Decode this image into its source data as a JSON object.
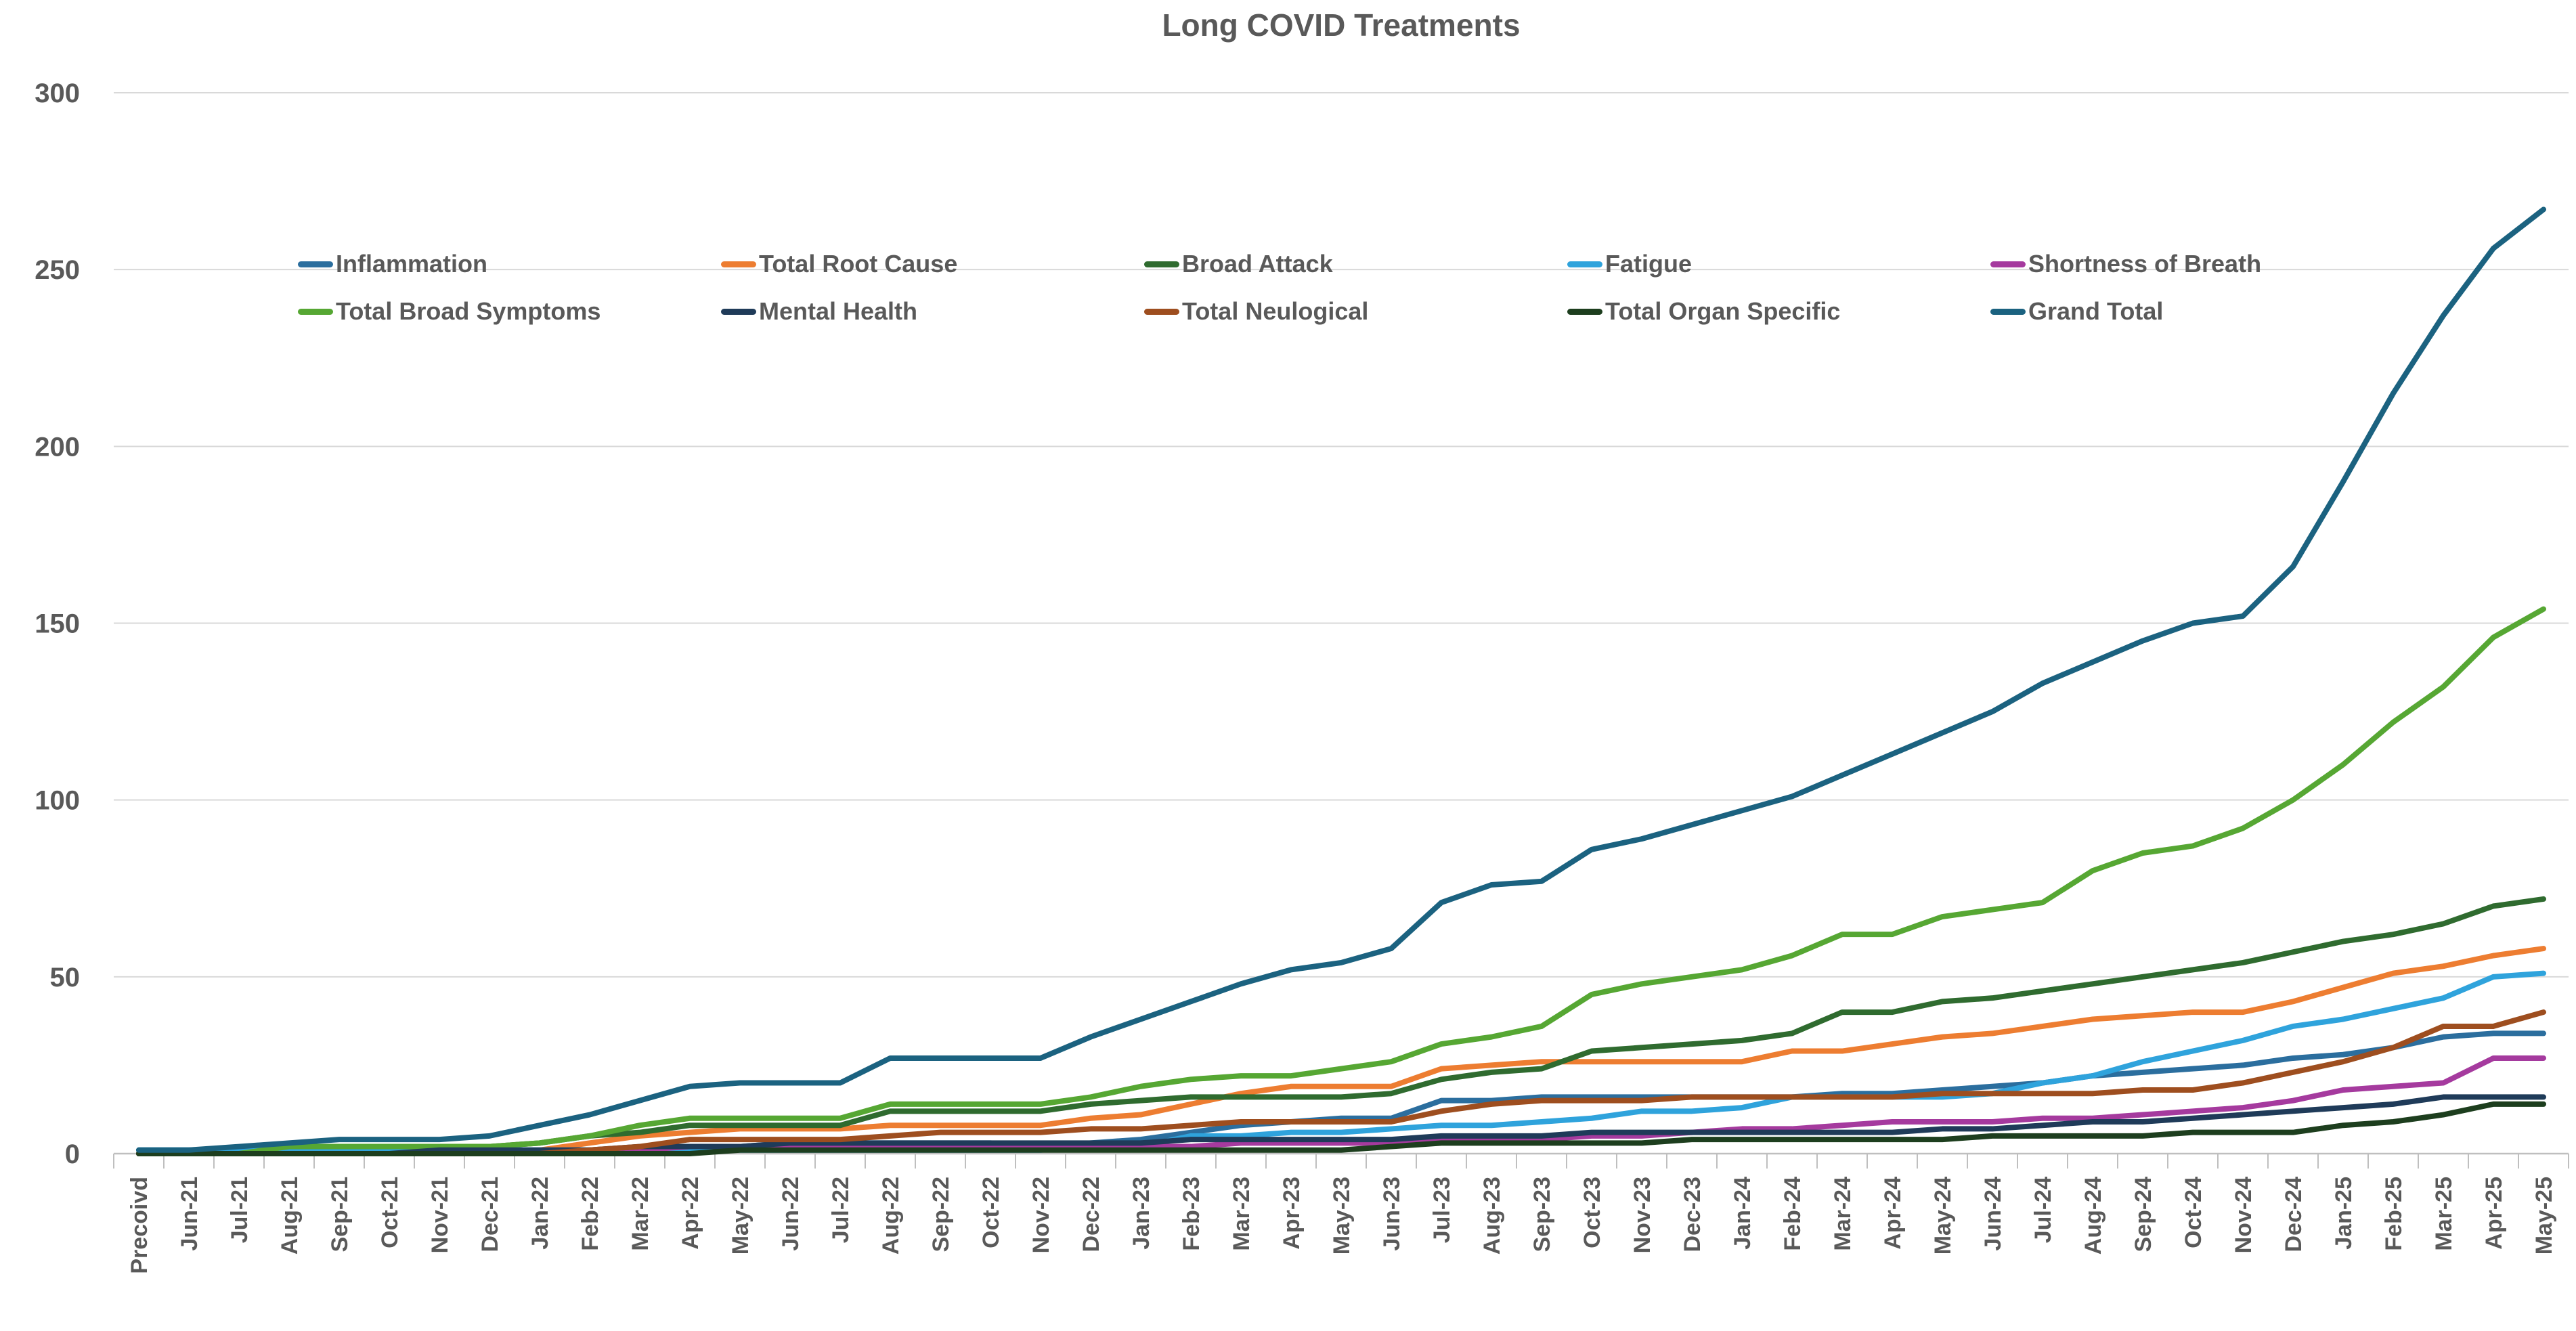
{
  "page": {
    "background": "#ffffff"
  },
  "chart_data": {
    "type": "line",
    "title": "Long COVID Treatments",
    "title_color": "#595959",
    "label_color": "#595959",
    "grid_color": "#D9D9D9",
    "axis_color": "#BFBFBF",
    "grid": true,
    "legend_position": "inside-top-left-two-rows",
    "ylim": [
      0,
      300
    ],
    "yticks": [
      0,
      50,
      100,
      150,
      200,
      250,
      300
    ],
    "xlabel": "",
    "ylabel": "",
    "categories": [
      "Precoivd",
      "Jun-21",
      "Jul-21",
      "Aug-21",
      "Sep-21",
      "Oct-21",
      "Nov-21",
      "Dec-21",
      "Jan-22",
      "Feb-22",
      "Mar-22",
      "Apr-22",
      "May-22",
      "Jun-22",
      "Jul-22",
      "Aug-22",
      "Sep-22",
      "Oct-22",
      "Nov-22",
      "Dec-22",
      "Jan-23",
      "Feb-23",
      "Mar-23",
      "Apr-23",
      "May-23",
      "Jun-23",
      "Jul-23",
      "Aug-23",
      "Sep-23",
      "Oct-23",
      "Nov-23",
      "Dec-23",
      "Jan-24",
      "Feb-24",
      "Mar-24",
      "Apr-24",
      "May-24",
      "Jun-24",
      "Jul-24",
      "Aug-24",
      "Sep-24",
      "Oct-24",
      "Nov-24",
      "Dec-24",
      "Jan-25",
      "Feb-25",
      "Mar-25",
      "Apr-25",
      "May-25"
    ],
    "series": [
      {
        "name": "Inflammation",
        "color": "#2B6E9E",
        "values": [
          1,
          1,
          1,
          1,
          1,
          1,
          1,
          1,
          1,
          1,
          1,
          2,
          2,
          3,
          3,
          3,
          3,
          3,
          2,
          3,
          4,
          6,
          8,
          9,
          10,
          10,
          15,
          15,
          16,
          16,
          16,
          16,
          16,
          16,
          17,
          17,
          18,
          19,
          20,
          22,
          23,
          24,
          25,
          27,
          28,
          30,
          33,
          34,
          34
        ]
      },
      {
        "name": "Total Root Cause",
        "color": "#ED7D31",
        "values": [
          0,
          0,
          0,
          0,
          0,
          0,
          0,
          0,
          1,
          3,
          5,
          6,
          7,
          7,
          7,
          8,
          8,
          8,
          8,
          10,
          11,
          14,
          17,
          19,
          19,
          19,
          24,
          25,
          26,
          26,
          26,
          26,
          26,
          29,
          29,
          31,
          33,
          34,
          36,
          38,
          39,
          40,
          40,
          43,
          47,
          51,
          53,
          56,
          58
        ]
      },
      {
        "name": "Broad Attack",
        "color": "#2F6B2F",
        "values": [
          0,
          0,
          0,
          2,
          2,
          2,
          2,
          2,
          3,
          5,
          6,
          8,
          8,
          8,
          8,
          12,
          12,
          12,
          12,
          14,
          15,
          16,
          16,
          16,
          16,
          17,
          21,
          23,
          24,
          29,
          30,
          31,
          32,
          34,
          40,
          40,
          43,
          44,
          46,
          48,
          50,
          52,
          54,
          57,
          60,
          62,
          65,
          70,
          72
        ]
      },
      {
        "name": "Fatigue",
        "color": "#2FA3DC",
        "values": [
          1,
          1,
          1,
          1,
          1,
          1,
          1,
          1,
          1,
          1,
          1,
          1,
          1,
          1,
          1,
          1,
          1,
          1,
          1,
          2,
          2,
          5,
          5,
          6,
          6,
          7,
          8,
          8,
          9,
          10,
          12,
          12,
          13,
          16,
          16,
          16,
          16,
          17,
          20,
          22,
          26,
          29,
          32,
          36,
          38,
          41,
          44,
          50,
          51
        ]
      },
      {
        "name": "Shortness of Breath",
        "color": "#A53A9E",
        "values": [
          0,
          0,
          0,
          0,
          0,
          0,
          0,
          0,
          0,
          1,
          1,
          2,
          2,
          2,
          2,
          2,
          2,
          2,
          2,
          2,
          2,
          2,
          3,
          3,
          3,
          3,
          4,
          4,
          4,
          5,
          5,
          6,
          7,
          7,
          8,
          9,
          9,
          9,
          10,
          10,
          11,
          12,
          13,
          15,
          18,
          19,
          20,
          27,
          27
        ]
      },
      {
        "name": "Total Broad Symptoms",
        "color": "#56A733",
        "values": [
          0,
          0,
          0,
          2,
          2,
          2,
          2,
          2,
          3,
          5,
          8,
          10,
          10,
          10,
          10,
          14,
          14,
          14,
          14,
          16,
          19,
          21,
          22,
          22,
          24,
          26,
          31,
          33,
          36,
          45,
          48,
          50,
          52,
          56,
          62,
          62,
          67,
          69,
          71,
          80,
          85,
          87,
          92,
          100,
          110,
          122,
          132,
          146,
          154
        ]
      },
      {
        "name": "Mental Health",
        "color": "#1F3B59",
        "values": [
          0,
          0,
          0,
          0,
          0,
          0,
          1,
          1,
          1,
          1,
          2,
          2,
          2,
          3,
          3,
          3,
          3,
          3,
          3,
          3,
          3,
          4,
          4,
          4,
          4,
          4,
          5,
          5,
          5,
          6,
          6,
          6,
          6,
          6,
          6,
          6,
          7,
          7,
          8,
          9,
          9,
          10,
          11,
          12,
          13,
          14,
          16,
          16,
          16
        ]
      },
      {
        "name": "Total Neulogical",
        "color": "#9E4E1F",
        "values": [
          0,
          0,
          0,
          0,
          0,
          0,
          0,
          0,
          0,
          1,
          2,
          4,
          4,
          4,
          4,
          5,
          6,
          6,
          6,
          7,
          7,
          8,
          9,
          9,
          9,
          9,
          12,
          14,
          15,
          15,
          15,
          16,
          16,
          16,
          16,
          16,
          17,
          17,
          17,
          17,
          18,
          18,
          20,
          23,
          26,
          30,
          36,
          36,
          40
        ]
      },
      {
        "name": "Total Organ Specific",
        "color": "#1D3E1E",
        "values": [
          0,
          0,
          0,
          0,
          0,
          0,
          0,
          0,
          0,
          0,
          0,
          0,
          1,
          1,
          1,
          1,
          1,
          1,
          1,
          1,
          1,
          1,
          1,
          1,
          1,
          2,
          3,
          3,
          3,
          3,
          3,
          4,
          4,
          4,
          4,
          4,
          4,
          5,
          5,
          5,
          5,
          6,
          6,
          6,
          8,
          9,
          11,
          14,
          14
        ]
      },
      {
        "name": "Grand Total",
        "color": "#1B6280",
        "values": [
          1,
          1,
          2,
          3,
          4,
          4,
          4,
          5,
          8,
          11,
          15,
          19,
          20,
          20,
          20,
          27,
          27,
          27,
          27,
          33,
          38,
          43,
          48,
          52,
          54,
          58,
          71,
          76,
          77,
          86,
          89,
          93,
          97,
          101,
          107,
          113,
          119,
          125,
          133,
          139,
          145,
          150,
          152,
          166,
          190,
          215,
          237,
          256,
          267
        ]
      }
    ],
    "legend_rows": [
      [
        0,
        1,
        2,
        3,
        4
      ],
      [
        5,
        6,
        7,
        8,
        9
      ]
    ]
  }
}
